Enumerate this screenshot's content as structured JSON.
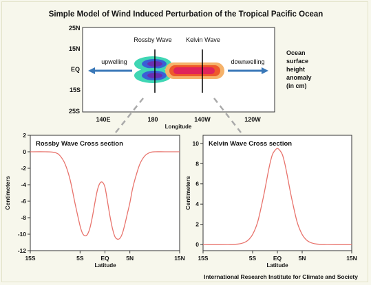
{
  "page": {
    "title": "Simple Model of Wind Induced Perturbation of the Tropical Pacific Ocean",
    "credit": "International Research Institute for Climate and Society",
    "background": "#f7f7ec"
  },
  "map": {
    "xlabel": "Longitude",
    "x_ticks": [
      "140E",
      "180",
      "140W",
      "120W"
    ],
    "y_ticks": [
      "25N",
      "15N",
      "EQ",
      "15S",
      "25S"
    ],
    "rossby_label": "Rossby Wave",
    "kelvin_label": "Kelvin Wave",
    "upwelling_label": "upwelling",
    "downwelling_label": "downwelling",
    "side_label_lines": [
      "Ocean",
      "surface",
      "height",
      "anomaly",
      "(in cm)"
    ],
    "arrow_color": "#3a78b8"
  },
  "chart_data": [
    {
      "type": "line",
      "title": "Rossby Wave Cross section",
      "xlabel": "Latitude",
      "ylabel": "Centimeters",
      "x_ticks": [
        "15S",
        "5S",
        "EQ",
        "5N",
        "15N"
      ],
      "x_tick_values": [
        -15,
        -5,
        0,
        5,
        15
      ],
      "y_ticks": [
        "2",
        "0",
        "-2",
        "-4",
        "-6",
        "-8",
        "-10",
        "-12"
      ],
      "y_tick_values": [
        2,
        0,
        -2,
        -4,
        -6,
        -8,
        -10,
        -12
      ],
      "xlim": [
        -15,
        15
      ],
      "ylim": [
        -12,
        2
      ],
      "color": "#e8736c",
      "x": [
        -15,
        -12,
        -10,
        -9,
        -8,
        -7,
        -6,
        -5,
        -4.5,
        -4,
        -3.5,
        -3,
        -2.5,
        -2,
        -1.5,
        -1,
        -0.5,
        0,
        0.5,
        1,
        1.5,
        2,
        2.5,
        3,
        3.5,
        4,
        4.5,
        5,
        5.5,
        6,
        7,
        8,
        9,
        10,
        12,
        15
      ],
      "y": [
        0,
        0,
        -0.1,
        -0.5,
        -1.5,
        -3.4,
        -6.3,
        -9.0,
        -9.9,
        -10.2,
        -10.0,
        -9.2,
        -7.8,
        -6.1,
        -4.6,
        -3.8,
        -3.7,
        -4.3,
        -6.0,
        -7.8,
        -9.3,
        -10.3,
        -10.6,
        -10.5,
        -9.9,
        -8.8,
        -7.5,
        -6.2,
        -4.6,
        -3.4,
        -1.5,
        -0.5,
        -0.1,
        0,
        0,
        0
      ]
    },
    {
      "type": "line",
      "title": "Kelvin Wave Cross section",
      "xlabel": "Latitude",
      "ylabel": "Centimeters",
      "x_ticks": [
        "15S",
        "5S",
        "EQ",
        "5N",
        "15N"
      ],
      "x_tick_values": [
        -15,
        -5,
        0,
        5,
        15
      ],
      "y_ticks": [
        "10",
        "8",
        "6",
        "4",
        "2",
        "0"
      ],
      "y_tick_values": [
        10,
        8,
        6,
        4,
        2,
        0
      ],
      "xlim": [
        -15,
        15
      ],
      "ylim": [
        -0.6,
        10.8
      ],
      "color": "#e8736c",
      "x": [
        -15,
        -10,
        -8,
        -7,
        -6,
        -5,
        -4,
        -3,
        -2.5,
        -2,
        -1.5,
        -1,
        -0.5,
        0,
        0.5,
        1,
        1.5,
        2,
        2.5,
        3,
        4,
        5,
        6,
        7,
        8,
        10,
        15
      ],
      "y": [
        0,
        0,
        0.05,
        0.15,
        0.4,
        1.0,
        2.2,
        4.3,
        5.5,
        6.8,
        8.0,
        8.9,
        9.3,
        9.5,
        9.3,
        8.9,
        8.0,
        6.8,
        5.5,
        4.3,
        2.2,
        1.0,
        0.4,
        0.15,
        0.05,
        0,
        0
      ]
    }
  ]
}
